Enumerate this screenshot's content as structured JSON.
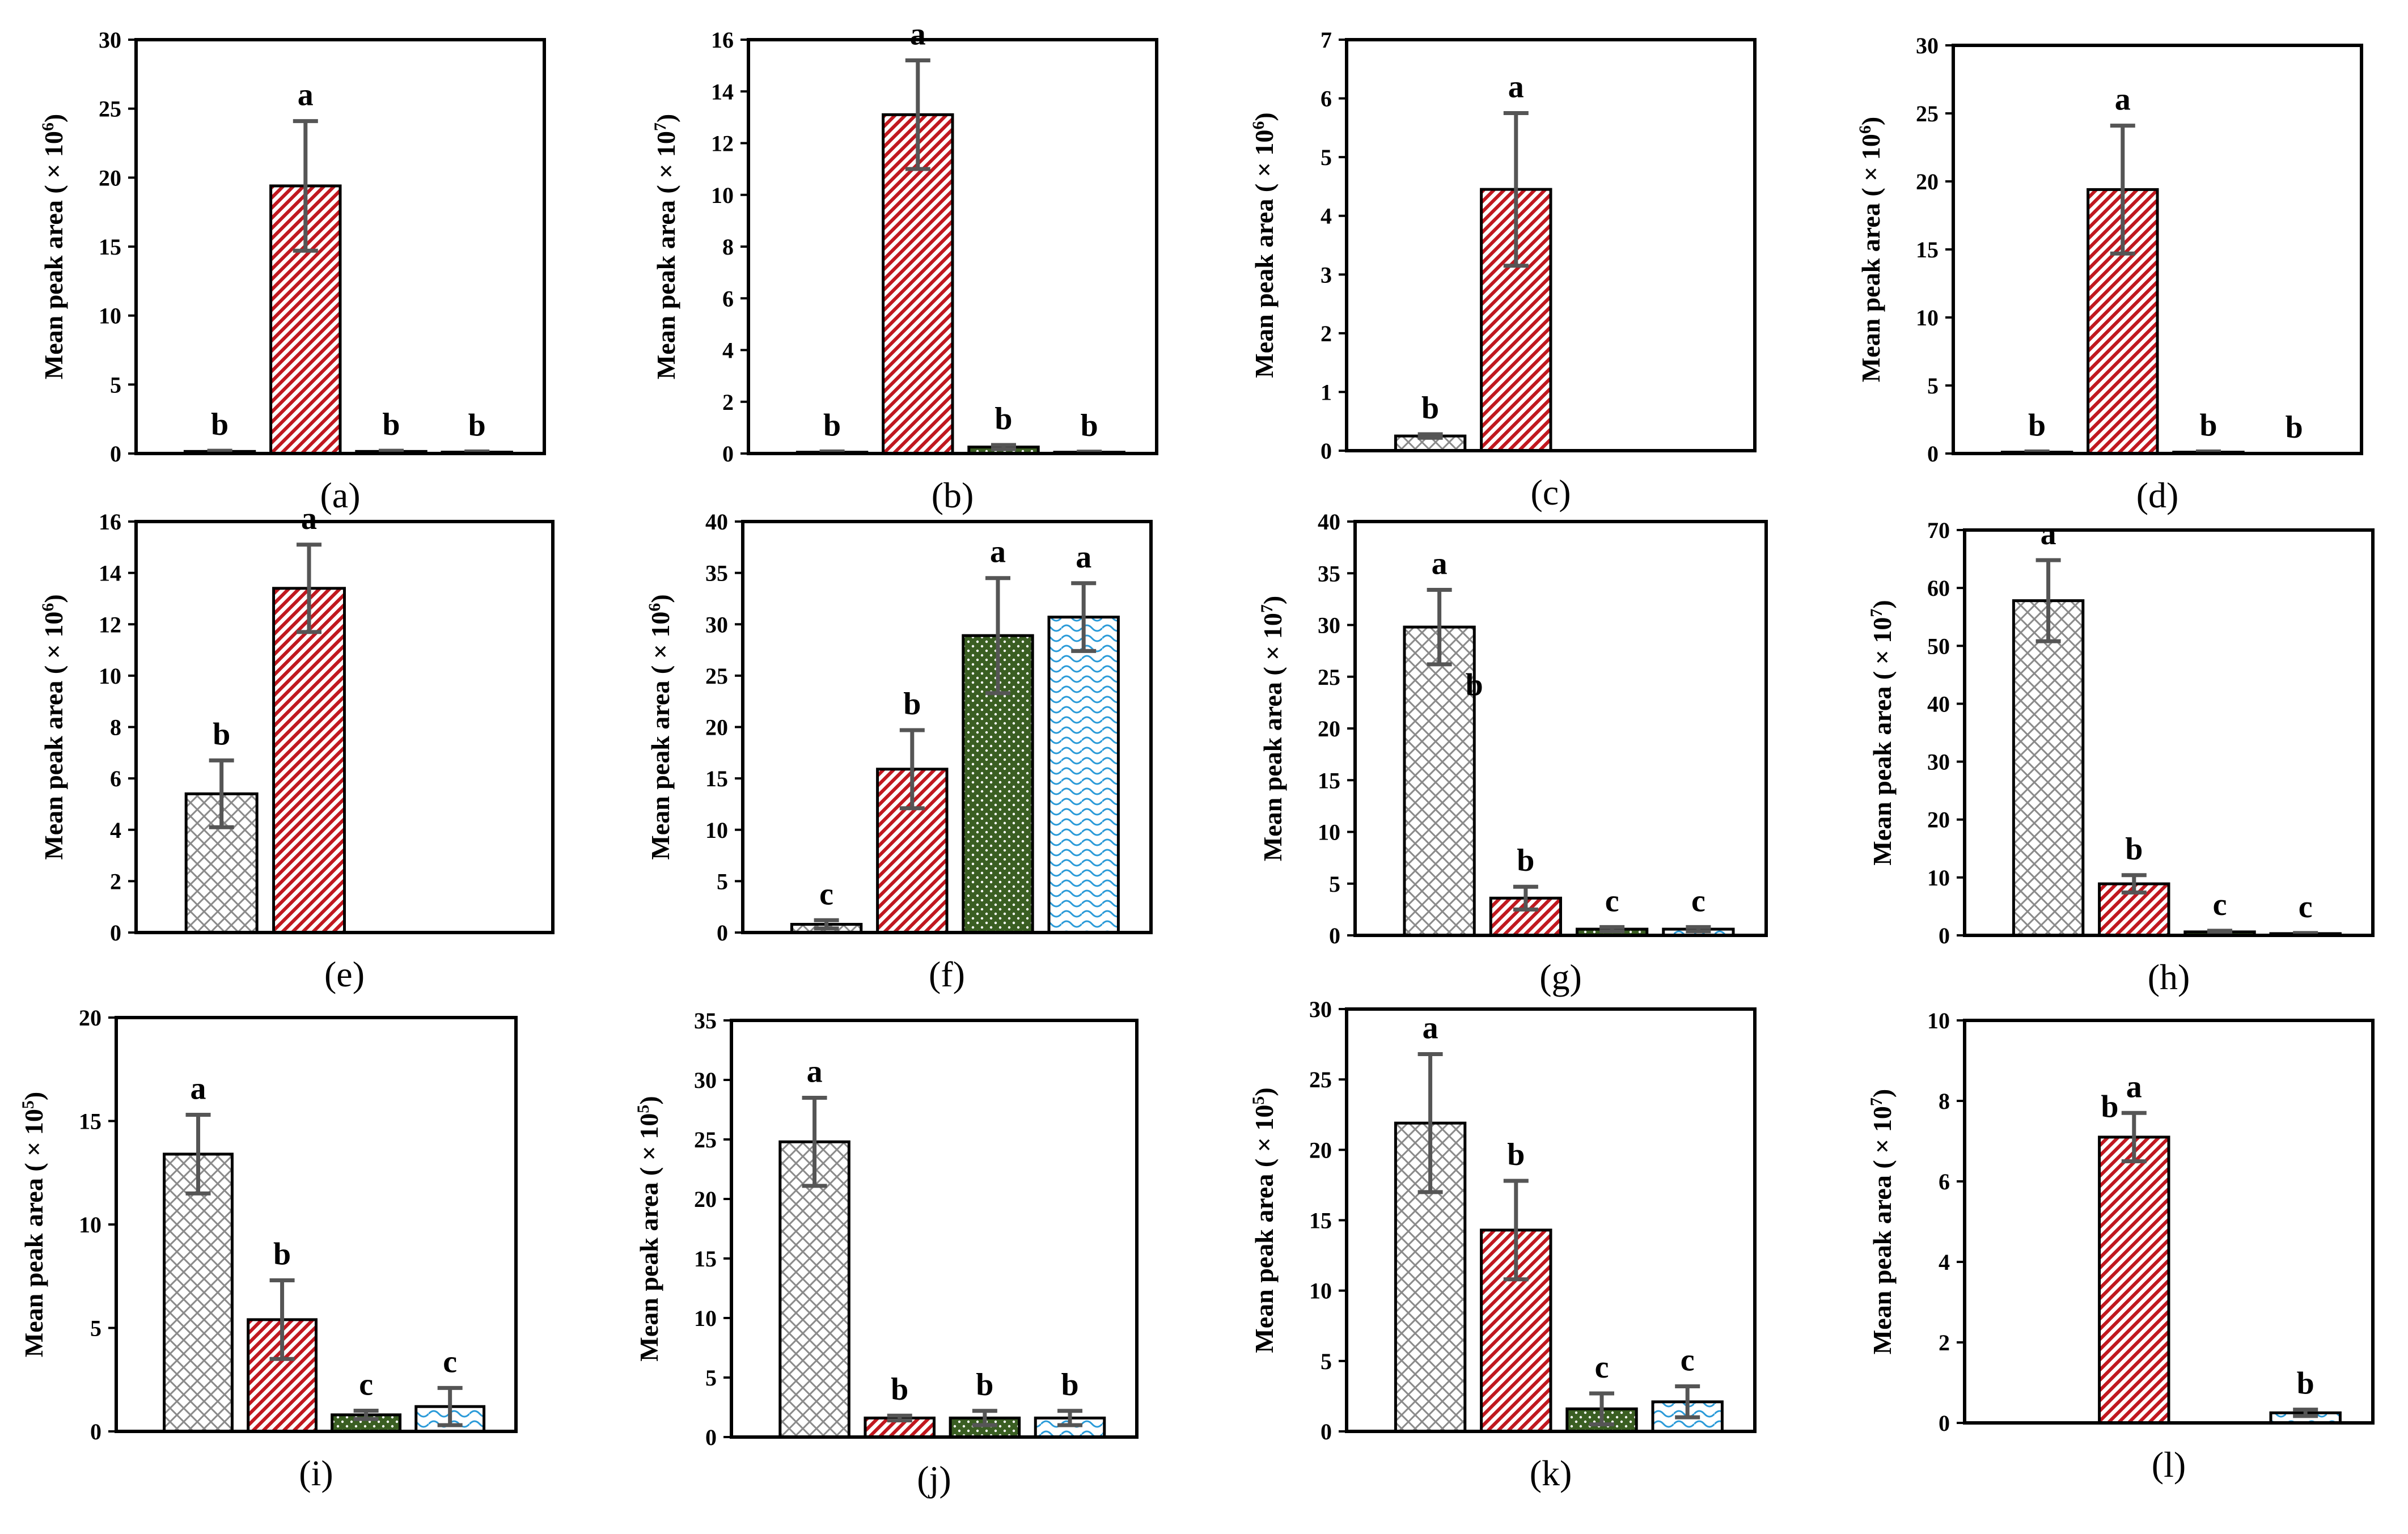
{
  "chart_data": [
    {
      "panel": "(a)",
      "type": "bar",
      "y_title_text": "Mean peak area ( × 10",
      "y_exp": "6",
      "ylim": [
        0,
        30
      ],
      "ticks": [
        0,
        5,
        10,
        15,
        20,
        25,
        30
      ],
      "values": [
        0.15,
        19.4,
        0.15,
        0.1
      ],
      "errors": [
        0.05,
        4.7,
        0.05,
        0.05
      ],
      "letters": [
        "b",
        "a",
        "b",
        "b"
      ]
    },
    {
      "panel": "(b)",
      "type": "bar",
      "y_title_text": "Mean peak area ( × 10",
      "y_exp": "7",
      "ylim": [
        0,
        16
      ],
      "ticks": [
        0,
        2,
        4,
        6,
        8,
        10,
        12,
        14,
        16
      ],
      "values": [
        0.05,
        13.1,
        0.25,
        0.05
      ],
      "errors": [
        0.03,
        2.1,
        0.08,
        0.02
      ],
      "letters": [
        "b",
        "a",
        "b",
        "b"
      ]
    },
    {
      "panel": "(c)",
      "type": "bar",
      "y_title_text": "Mean peak area ( × 10",
      "y_exp": "6",
      "ylim": [
        0,
        7
      ],
      "ticks": [
        0,
        1,
        2,
        3,
        4,
        5,
        6,
        7
      ],
      "values": [
        0.25,
        4.45,
        null,
        null
      ],
      "errors": [
        0.03,
        1.3,
        null,
        null
      ],
      "letters": [
        "b",
        "a",
        "",
        ""
      ]
    },
    {
      "panel": "(d)",
      "type": "bar",
      "y_title_text": "Mean peak area ( × 10",
      "y_exp": "6",
      "ylim": [
        0,
        30
      ],
      "ticks": [
        0,
        5,
        10,
        15,
        20,
        25,
        30
      ],
      "values": [
        0.1,
        19.4,
        0.1,
        0
      ],
      "errors": [
        0.05,
        4.7,
        0.05,
        0
      ],
      "letters": [
        "b",
        "a",
        "b",
        "b"
      ]
    },
    {
      "panel": "(e)",
      "type": "bar",
      "y_title_text": "Mean peak area ( × 10",
      "y_exp": "6",
      "ylim": [
        0,
        16
      ],
      "ticks": [
        0,
        2,
        4,
        6,
        8,
        10,
        12,
        14,
        16
      ],
      "values": [
        5.4,
        13.4,
        null,
        null
      ],
      "errors": [
        1.3,
        1.7,
        null,
        null
      ],
      "letters": [
        "b",
        "a",
        "",
        ""
      ]
    },
    {
      "panel": "(f)",
      "type": "bar",
      "y_title_text": "Mean peak area ( × 10",
      "y_exp": "6",
      "ylim": [
        0,
        40
      ],
      "ticks": [
        0,
        5,
        10,
        15,
        20,
        25,
        30,
        35,
        40
      ],
      "values": [
        0.8,
        15.9,
        28.9,
        30.7
      ],
      "errors": [
        0.4,
        3.8,
        5.6,
        3.3
      ],
      "letters": [
        "c",
        "b",
        "a",
        "a"
      ]
    },
    {
      "panel": "(g)",
      "type": "bar",
      "y_title_text": "Mean peak area ( × 10",
      "y_exp": "7",
      "ylim": [
        0,
        40
      ],
      "ticks": [
        0,
        5,
        10,
        15,
        20,
        25,
        30,
        35,
        40
      ],
      "values": [
        29.8,
        3.6,
        0.6,
        0.6
      ],
      "errors": [
        3.6,
        1.1,
        0.2,
        0.2
      ],
      "letters": [
        "a",
        "b",
        "c",
        "c"
      ],
      "extra_letter": "b"
    },
    {
      "panel": "(h)",
      "type": "bar",
      "y_title_text": "Mean peak area ( × 10",
      "y_exp": "7",
      "ylim": [
        0,
        70
      ],
      "ticks": [
        0,
        10,
        20,
        30,
        40,
        50,
        60,
        70
      ],
      "values": [
        57.8,
        8.9,
        0.6,
        0.3
      ],
      "errors": [
        7,
        1.5,
        0.2,
        0.1
      ],
      "letters": [
        "a",
        "b",
        "c",
        "c"
      ]
    },
    {
      "panel": "(i)",
      "type": "bar",
      "y_title_text": "Mean peak area ( × 10",
      "y_exp": "5",
      "ylim": [
        0,
        20
      ],
      "ticks": [
        0,
        5,
        10,
        15,
        20
      ],
      "values": [
        13.4,
        5.4,
        0.8,
        1.2
      ],
      "errors": [
        1.9,
        1.9,
        0.2,
        0.9
      ],
      "letters": [
        "a",
        "b",
        "c",
        "c"
      ]
    },
    {
      "panel": "(j)",
      "type": "bar",
      "y_title_text": "Mean peak area ( × 10",
      "y_exp": "5",
      "ylim": [
        0,
        35
      ],
      "ticks": [
        0,
        5,
        10,
        15,
        20,
        25,
        30,
        35
      ],
      "values": [
        24.8,
        1.6,
        1.6,
        1.6
      ],
      "errors": [
        3.7,
        0.2,
        0.6,
        0.6
      ],
      "letters": [
        "a",
        "b",
        "b",
        "b"
      ]
    },
    {
      "panel": "(k)",
      "type": "bar",
      "y_title_text": "Mean peak area ( × 10",
      "y_exp": "5",
      "ylim": [
        0,
        30
      ],
      "ticks": [
        0,
        5,
        10,
        15,
        20,
        25,
        30
      ],
      "values": [
        21.9,
        14.3,
        1.6,
        2.1
      ],
      "errors": [
        4.9,
        3.5,
        1.1,
        1.1
      ],
      "letters": [
        "a",
        "b",
        "c",
        "c"
      ]
    },
    {
      "panel": "(l)",
      "type": "bar",
      "y_title_text": "Mean peak area ( × 10",
      "y_exp": "7",
      "ylim": [
        0,
        10
      ],
      "ticks": [
        0,
        2,
        4,
        6,
        8,
        10
      ],
      "values": [
        0,
        7.1,
        0,
        0.25
      ],
      "errors": [
        0,
        0.6,
        0,
        0.08
      ],
      "letters": [
        "",
        "a",
        "",
        "b"
      ],
      "extra_letter": "b"
    }
  ],
  "colors": {
    "frame": "#000000",
    "error_bar": "#555555",
    "series_0_fill": "#ffffff",
    "series_0_pattern": "#8a8a8a",
    "series_1_fill": "#ffffff",
    "series_1_pattern": "#c0181f",
    "series_2_fill": "#3a5e22",
    "series_2_pattern": "#ffffff",
    "series_3_fill": "#ffffff",
    "series_3_pattern": "#2a9ad8"
  }
}
